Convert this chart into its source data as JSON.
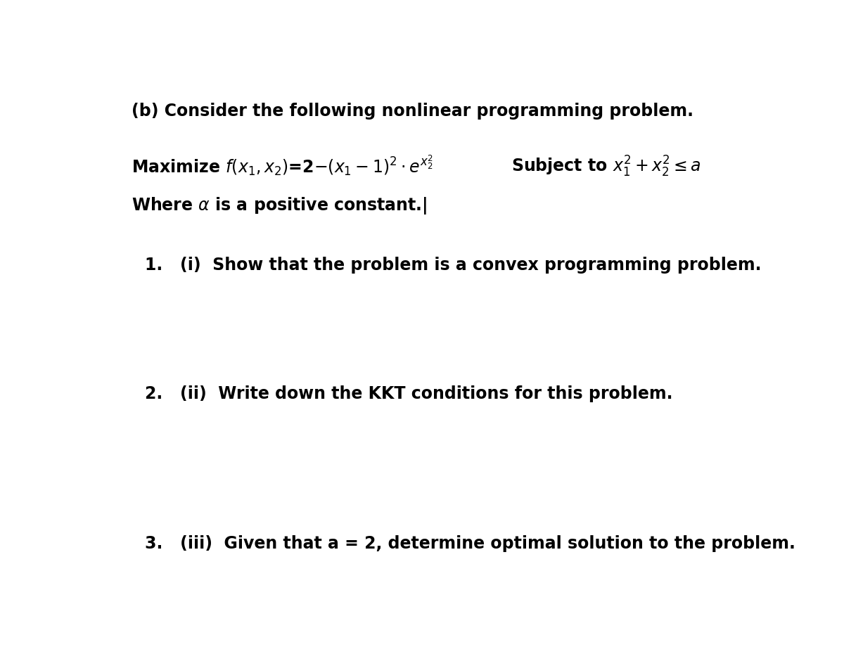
{
  "bg_color": "#ffffff",
  "text_color": "#000000",
  "title_line": "(b) Consider the following nonlinear programming problem.",
  "item1": "1.   (i)  Show that the problem is a convex programming problem.",
  "item2": "2.   (ii)  Write down the KKT conditions for this problem.",
  "item3": "3.   (iii)  Given that a = 2, determine optimal solution to the problem.",
  "bold_font_size": 17,
  "fig_width": 12,
  "fig_height": 9.47
}
